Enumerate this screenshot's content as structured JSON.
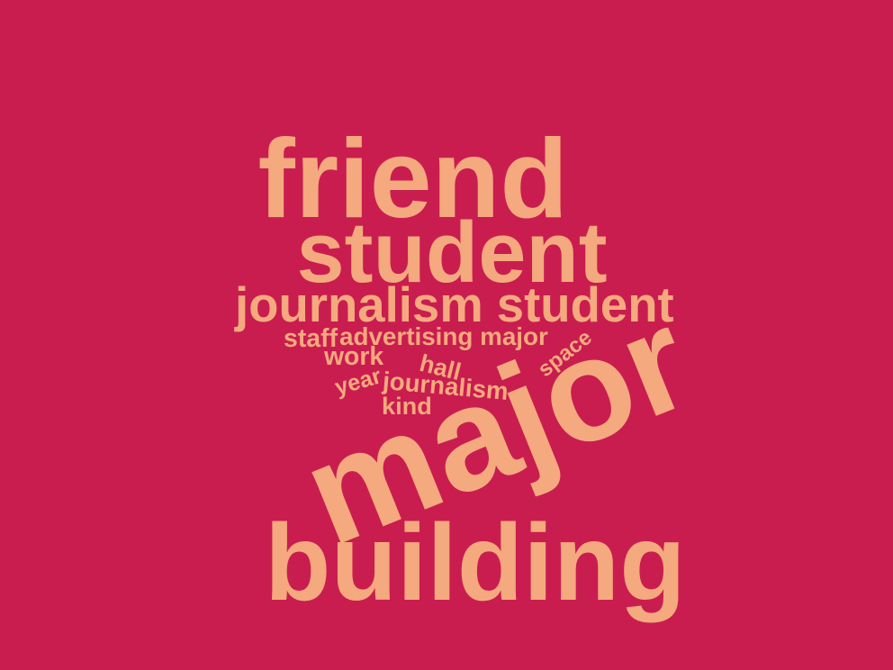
{
  "colors": {
    "background": "#c91d4f",
    "text": "#f5a97e"
  },
  "words": [
    {
      "id": "friend",
      "text": "friend",
      "rotation_deg": 0
    },
    {
      "id": "student",
      "text": "student",
      "rotation_deg": 0
    },
    {
      "id": "journalism-student",
      "text": "journalism student",
      "rotation_deg": 0
    },
    {
      "id": "staff",
      "text": "staff",
      "rotation_deg": 0
    },
    {
      "id": "advertising-major",
      "text": "advertising major",
      "rotation_deg": 0
    },
    {
      "id": "work",
      "text": "work",
      "rotation_deg": 0
    },
    {
      "id": "hall",
      "text": "hall",
      "rotation_deg": 14
    },
    {
      "id": "space",
      "text": "space",
      "rotation_deg": -38
    },
    {
      "id": "year",
      "text": "year",
      "rotation_deg": -16
    },
    {
      "id": "journalism",
      "text": "journalism",
      "rotation_deg": 5
    },
    {
      "id": "kind",
      "text": "kind",
      "rotation_deg": 0
    },
    {
      "id": "major",
      "text": "major",
      "rotation_deg": -22
    },
    {
      "id": "building",
      "text": "building",
      "rotation_deg": 0
    }
  ]
}
